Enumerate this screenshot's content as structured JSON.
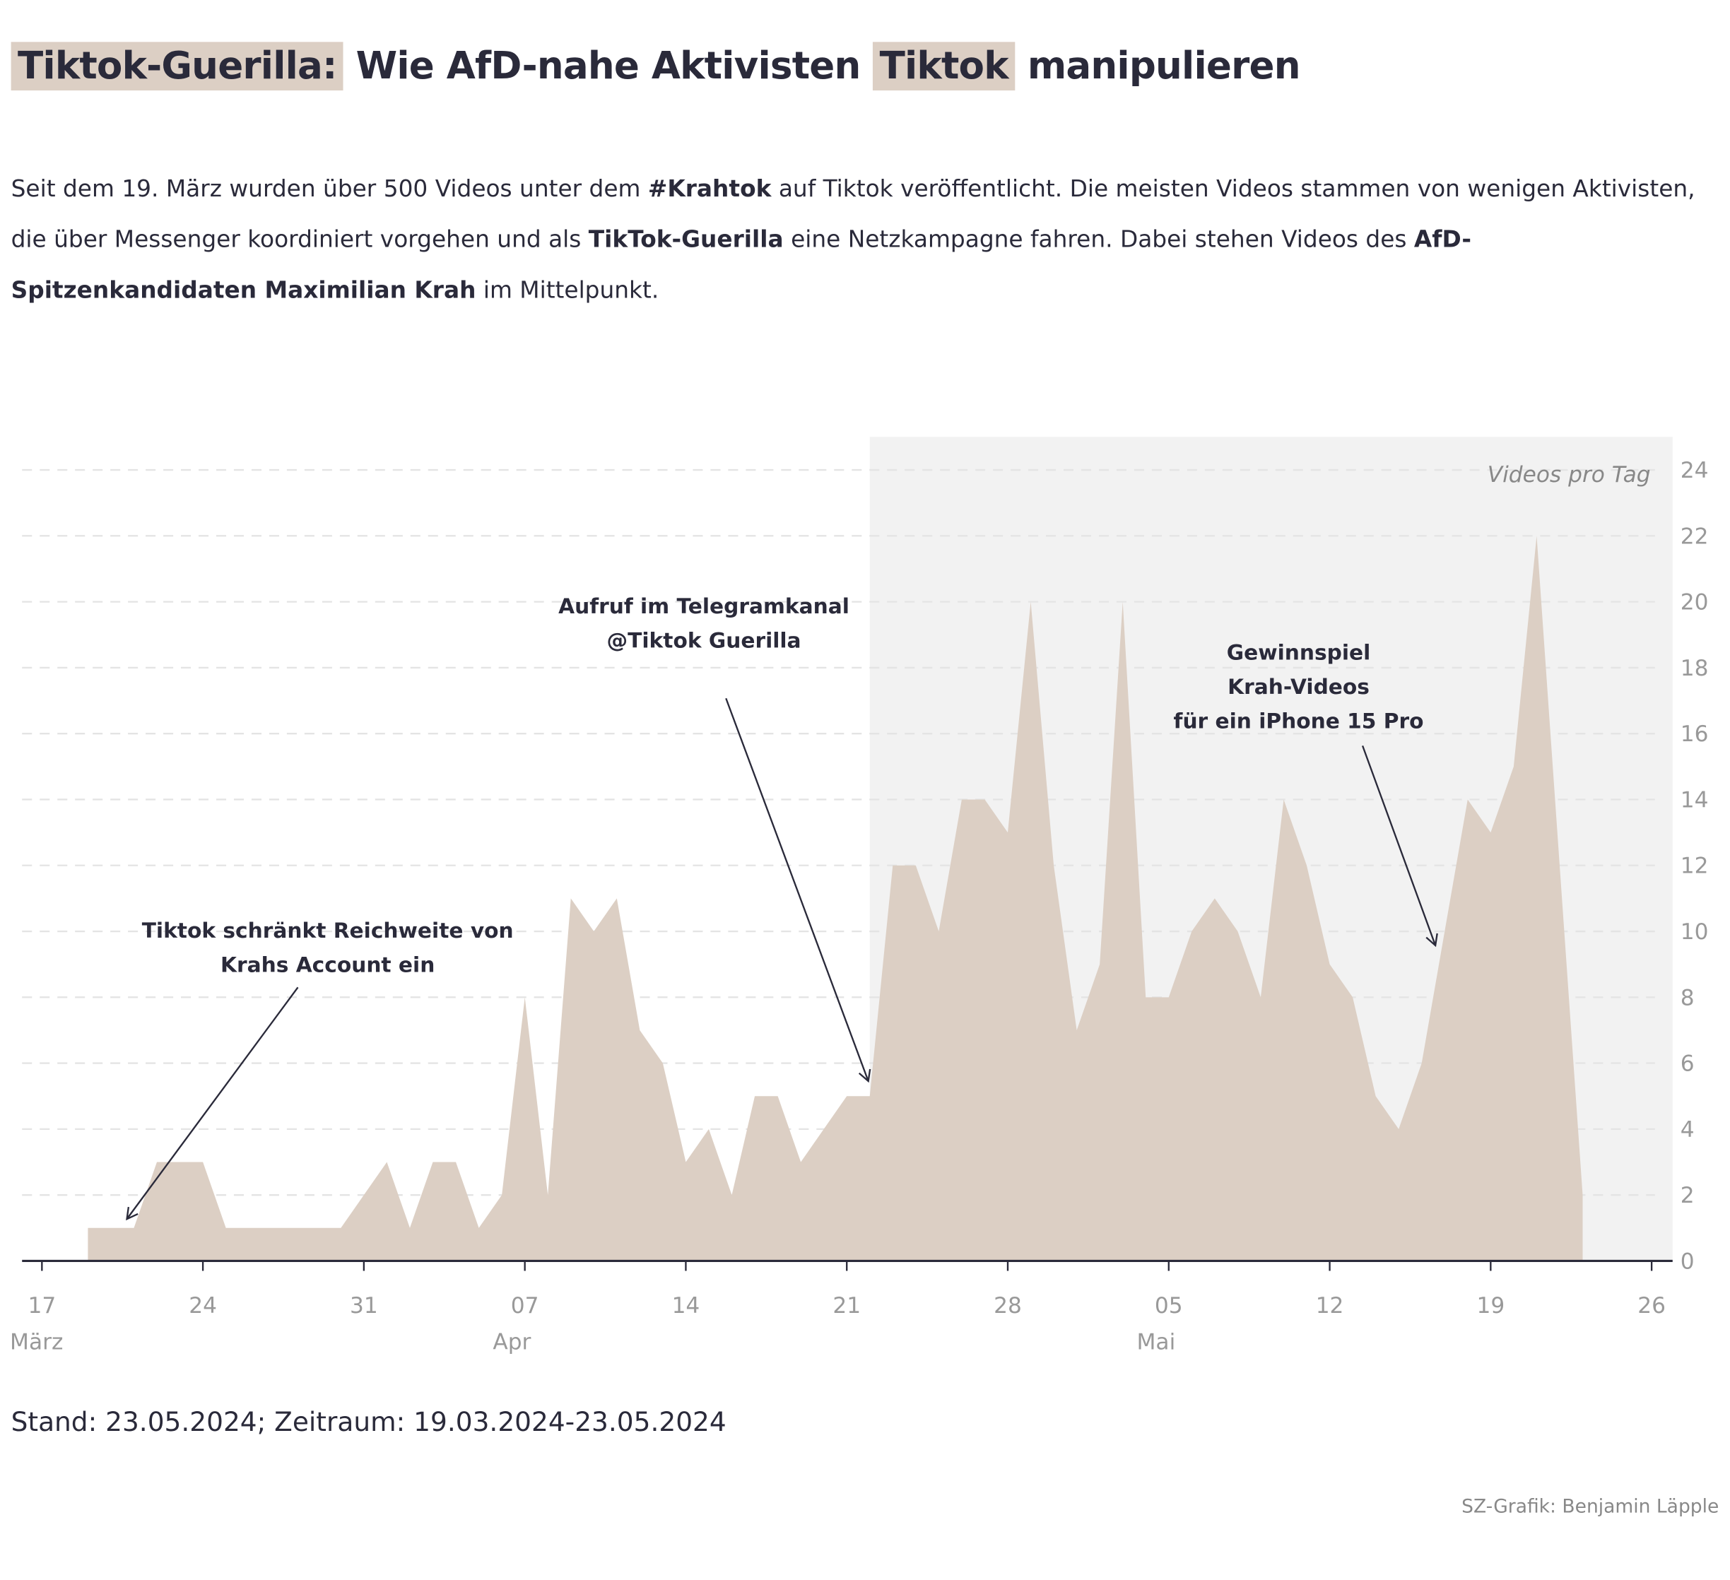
{
  "title": {
    "part1": "Tiktok-Guerilla:",
    "part2": "Wie AfD-nahe Aktivisten",
    "part3": "Tiktok",
    "part4": "manipulieren"
  },
  "intro": {
    "t1": "Seit dem 19. März wurden über 500 Videos unter dem ",
    "b1": "#Krahtok",
    "t2": " auf Tiktok veröffentlicht. Die meisten Videos stammen von wenigen Aktivisten, die über Messenger koordiniert  vorgehen und als ",
    "b2": "TikTok-Guerilla",
    "t3": " eine Netzkampagne fahren. Dabei stehen Videos des ",
    "b3": "AfD-Spitzenkandidaten Maximilian Krah",
    "t4": " im Mittelpunkt."
  },
  "chart_data": {
    "type": "area",
    "ylabel": "Videos pro Tag",
    "ylim": [
      0,
      24
    ],
    "yticks": [
      "0",
      "2",
      "4",
      "6",
      "8",
      "10",
      "12",
      "14",
      "16",
      "18",
      "20",
      "22",
      "24"
    ],
    "xlim": [
      "2024-03-17",
      "2024-05-26"
    ],
    "xticks": [
      {
        "date": "2024-03-17",
        "label": "17",
        "month": "März"
      },
      {
        "date": "2024-03-24",
        "label": "24",
        "month": ""
      },
      {
        "date": "2024-03-31",
        "label": "31",
        "month": ""
      },
      {
        "date": "2024-04-07",
        "label": "07",
        "month": "Apr"
      },
      {
        "date": "2024-04-14",
        "label": "14",
        "month": ""
      },
      {
        "date": "2024-04-21",
        "label": "21",
        "month": ""
      },
      {
        "date": "2024-04-28",
        "label": "28",
        "month": ""
      },
      {
        "date": "2024-05-05",
        "label": "05",
        "month": "Mai"
      },
      {
        "date": "2024-05-12",
        "label": "12",
        "month": ""
      },
      {
        "date": "2024-05-19",
        "label": "19",
        "month": ""
      },
      {
        "date": "2024-05-26",
        "label": "26",
        "month": ""
      }
    ],
    "grid": true,
    "fill_color": "#dccfc4",
    "highlight_color": "#f2f2f2",
    "highlight_range": [
      "2024-04-22",
      "2024-05-26"
    ],
    "start_date": "2024-03-19",
    "values": [
      1,
      1,
      1,
      3,
      3,
      3,
      1,
      1,
      1,
      1,
      1,
      1,
      2,
      3,
      1,
      3,
      3,
      1,
      2,
      8,
      2,
      11,
      10,
      11,
      7,
      6,
      3,
      4,
      2,
      5,
      5,
      3,
      4,
      5,
      5,
      12,
      12,
      10,
      14,
      14,
      13,
      20,
      12,
      7,
      9,
      20,
      8,
      8,
      10,
      11,
      10,
      8,
      14,
      12,
      9,
      8,
      5,
      4,
      6,
      10,
      14,
      13,
      15,
      22,
      12,
      2
    ],
    "annotations": [
      {
        "lines": [
          "Tiktok schränkt Reichweite von",
          "Krahs Account ein"
        ]
      },
      {
        "lines": [
          "Aufruf im Telegramkanal",
          "@Tiktok Guerilla"
        ]
      },
      {
        "lines": [
          "Gewinnspiel",
          "Krah-Videos",
          "für ein iPhone 15 Pro"
        ]
      }
    ]
  },
  "footer": {
    "stand": "Stand: 23.05.2024; Zeitraum: 19.03.2024-23.05.2024",
    "credit": "SZ-Grafik: Benjamin Läpple"
  }
}
